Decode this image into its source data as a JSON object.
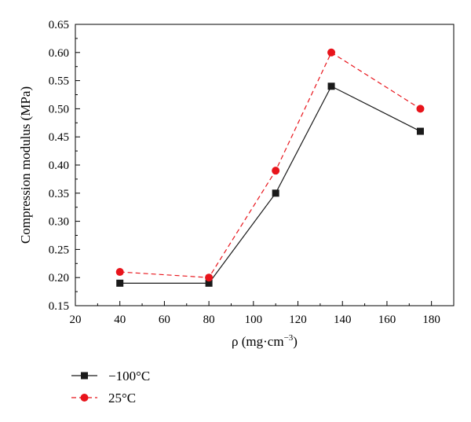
{
  "chart_data": {
    "type": "line",
    "xlabel": "ρ (mg·cm",
    "xlabel_exp": "−3",
    "xlabel_close": ")",
    "ylabel": "Compression modulus (MPa)",
    "xlim": [
      20,
      190
    ],
    "ylim": [
      0.15,
      0.65
    ],
    "xticks": [
      20,
      40,
      60,
      80,
      100,
      120,
      140,
      160,
      180
    ],
    "yticks": [
      "0.15",
      "0.20",
      "0.25",
      "0.30",
      "0.35",
      "0.40",
      "0.45",
      "0.50",
      "0.55",
      "0.60",
      "0.65"
    ],
    "grid": false,
    "legend_position": "bottom-left",
    "series": [
      {
        "name": "−100°C",
        "color": "#1a1a1a",
        "marker": "square",
        "line_style": "solid",
        "x": [
          40,
          80,
          110,
          135,
          175
        ],
        "y": [
          0.19,
          0.19,
          0.35,
          0.54,
          0.46
        ]
      },
      {
        "name": "25°C",
        "color": "#e8141b",
        "marker": "circle",
        "line_style": "dashed",
        "x": [
          40,
          80,
          110,
          135,
          175
        ],
        "y": [
          0.21,
          0.2,
          0.39,
          0.6,
          0.5
        ]
      }
    ]
  }
}
